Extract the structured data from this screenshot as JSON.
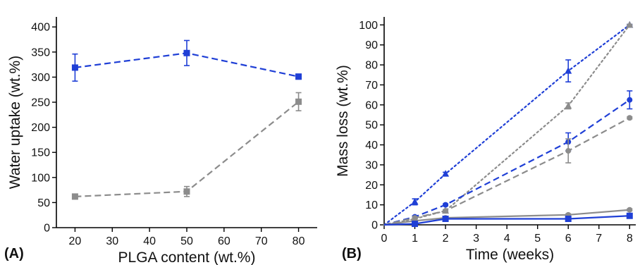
{
  "colors": {
    "blue": "#1f3fd6",
    "gray": "#8c8c8c",
    "axis": "#000000"
  },
  "chart_data": [
    {
      "type": "line",
      "panel_label": "(A)",
      "xlabel": "PLGA content (wt.%)",
      "ylabel": "Water uptake (wt.%)",
      "xlim": [
        15,
        85
      ],
      "ylim": [
        0,
        420
      ],
      "xticks": [
        20,
        30,
        40,
        50,
        60,
        70,
        80
      ],
      "yticks": [
        0,
        50,
        100,
        150,
        200,
        250,
        300,
        350,
        400
      ],
      "grid": false,
      "series": [
        {
          "color": "blue",
          "dash": "dashed",
          "marker": "square",
          "x": [
            20,
            50,
            80
          ],
          "y": [
            319,
            348,
            301
          ],
          "err": [
            27,
            25,
            5
          ]
        },
        {
          "color": "gray",
          "dash": "dashed",
          "marker": "square",
          "x": [
            20,
            50,
            80
          ],
          "y": [
            62,
            72,
            251
          ],
          "err": [
            5,
            10,
            18
          ]
        }
      ]
    },
    {
      "type": "line",
      "panel_label": "(B)",
      "xlabel": "Time (weeks)",
      "ylabel": "Mass loss (wt.%)",
      "xlim": [
        0,
        8.2
      ],
      "ylim": [
        0,
        104
      ],
      "xticks": [
        0,
        1,
        2,
        3,
        4,
        5,
        6,
        7,
        8
      ],
      "yticks": [
        0,
        10,
        20,
        30,
        40,
        50,
        60,
        70,
        80,
        90,
        100
      ],
      "grid": false,
      "series": [
        {
          "color": "blue",
          "dash": "dotted",
          "marker": "triangle",
          "x": [
            0,
            1,
            2,
            6,
            8
          ],
          "y": [
            0,
            11.5,
            25.5,
            77,
            100
          ],
          "err": [
            0,
            1.5,
            0.8,
            5.5,
            0.3
          ]
        },
        {
          "color": "gray",
          "dash": "dotted",
          "marker": "triangle",
          "x": [
            0,
            1,
            2,
            6,
            8
          ],
          "y": [
            0,
            3,
            7,
            59.5,
            100
          ],
          "err": [
            0,
            0.5,
            0.5,
            1.5,
            0.3
          ]
        },
        {
          "color": "blue",
          "dash": "dashed",
          "marker": "circle",
          "x": [
            0,
            1,
            2,
            6,
            8
          ],
          "y": [
            0,
            4,
            10,
            41.5,
            62.5
          ],
          "err": [
            0,
            0.5,
            0.5,
            4.5,
            4.5
          ]
        },
        {
          "color": "gray",
          "dash": "dashed",
          "marker": "circle",
          "x": [
            0,
            1,
            2,
            6,
            8
          ],
          "y": [
            0,
            3.5,
            7,
            37,
            53.5
          ],
          "err": [
            0,
            0.5,
            0.5,
            6,
            0.5
          ]
        },
        {
          "color": "gray",
          "dash": "solid",
          "marker": "circle",
          "x": [
            0,
            1,
            2,
            6,
            8
          ],
          "y": [
            0,
            2,
            3.5,
            5,
            7.5
          ],
          "err": [
            0,
            0.4,
            0.4,
            0.5,
            0.5
          ]
        },
        {
          "color": "blue",
          "dash": "solid",
          "marker": "square",
          "x": [
            0,
            1,
            2,
            6,
            8
          ],
          "y": [
            0,
            0.5,
            3,
            3,
            4.5
          ],
          "err": [
            0,
            0.3,
            0.3,
            0.4,
            1.2
          ]
        }
      ]
    }
  ]
}
